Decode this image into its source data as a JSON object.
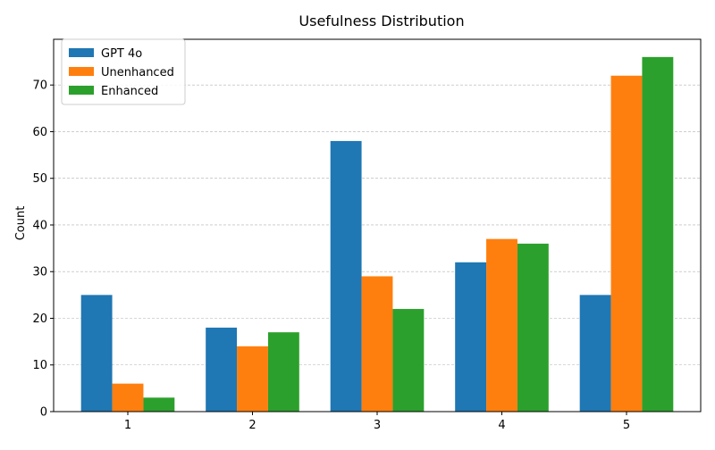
{
  "chart_data": {
    "type": "bar",
    "title": "Usefulness Distribution",
    "xlabel": "",
    "ylabel": "Count",
    "categories": [
      "1",
      "2",
      "3",
      "4",
      "5"
    ],
    "series": [
      {
        "name": "GPT 4o",
        "color": "#1f77b4",
        "values": [
          25,
          18,
          58,
          32,
          25
        ]
      },
      {
        "name": "Unenhanced",
        "color": "#ff7f0e",
        "values": [
          6,
          14,
          29,
          37,
          72
        ]
      },
      {
        "name": "Enhanced",
        "color": "#2ca02c",
        "values": [
          3,
          17,
          22,
          36,
          76
        ]
      }
    ],
    "ylim": [
      0,
      79.8
    ],
    "yticks": [
      0,
      10,
      20,
      30,
      40,
      50,
      60,
      70
    ],
    "grid": "y-dashed",
    "legend_position": "top-left"
  }
}
